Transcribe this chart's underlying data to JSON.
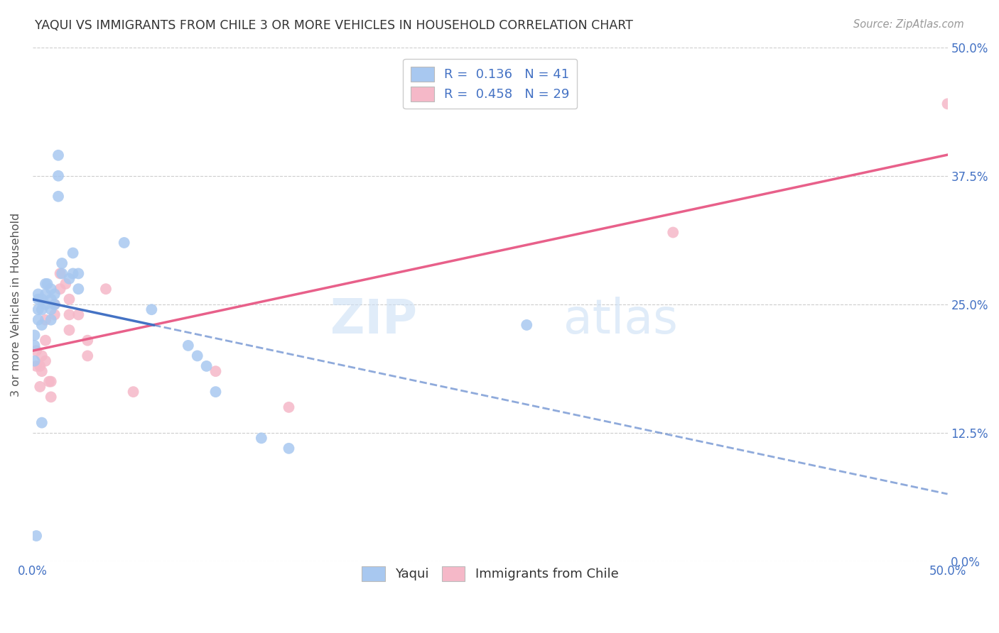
{
  "title": "YAQUI VS IMMIGRANTS FROM CHILE 3 OR MORE VEHICLES IN HOUSEHOLD CORRELATION CHART",
  "source": "Source: ZipAtlas.com",
  "ylabel": "3 or more Vehicles in Household",
  "legend_label1": "Yaqui",
  "legend_label2": "Immigrants from Chile",
  "r1": 0.136,
  "n1": 41,
  "r2": 0.458,
  "n2": 29,
  "xlim": [
    0.0,
    0.5
  ],
  "ylim": [
    0.0,
    0.5
  ],
  "ytick_vals": [
    0.0,
    0.125,
    0.25,
    0.375,
    0.5
  ],
  "ytick_labels_right": [
    "0.0%",
    "12.5%",
    "25.0%",
    "37.5%",
    "50.0%"
  ],
  "color1": "#a8c8f0",
  "color2": "#f5b8c8",
  "line_color1": "#4472c4",
  "line_color2": "#e8608a",
  "background_color": "#ffffff",
  "watermark_zip": "ZIP",
  "watermark_atlas": "atlas",
  "yaqui_x": [
    0.001,
    0.001,
    0.001,
    0.003,
    0.003,
    0.003,
    0.003,
    0.005,
    0.005,
    0.005,
    0.007,
    0.007,
    0.007,
    0.008,
    0.01,
    0.01,
    0.01,
    0.012,
    0.012,
    0.014,
    0.014,
    0.014,
    0.016,
    0.016,
    0.02,
    0.022,
    0.022,
    0.025,
    0.025,
    0.05,
    0.065,
    0.085,
    0.09,
    0.095,
    0.1,
    0.125,
    0.14,
    0.27,
    0.01,
    0.005,
    0.002
  ],
  "yaqui_y": [
    0.22,
    0.21,
    0.195,
    0.26,
    0.255,
    0.245,
    0.235,
    0.255,
    0.245,
    0.23,
    0.27,
    0.26,
    0.25,
    0.27,
    0.265,
    0.255,
    0.245,
    0.26,
    0.25,
    0.395,
    0.375,
    0.355,
    0.29,
    0.28,
    0.275,
    0.3,
    0.28,
    0.28,
    0.265,
    0.31,
    0.245,
    0.21,
    0.2,
    0.19,
    0.165,
    0.12,
    0.11,
    0.23,
    0.235,
    0.135,
    0.025
  ],
  "chile_x": [
    0.002,
    0.002,
    0.004,
    0.004,
    0.005,
    0.005,
    0.007,
    0.007,
    0.007,
    0.009,
    0.01,
    0.01,
    0.012,
    0.012,
    0.015,
    0.015,
    0.018,
    0.02,
    0.02,
    0.02,
    0.025,
    0.03,
    0.03,
    0.04,
    0.055,
    0.1,
    0.14,
    0.35,
    0.5
  ],
  "chile_y": [
    0.205,
    0.19,
    0.19,
    0.17,
    0.2,
    0.185,
    0.235,
    0.215,
    0.195,
    0.175,
    0.175,
    0.16,
    0.25,
    0.24,
    0.28,
    0.265,
    0.27,
    0.255,
    0.24,
    0.225,
    0.24,
    0.215,
    0.2,
    0.265,
    0.165,
    0.185,
    0.15,
    0.32,
    0.445
  ]
}
